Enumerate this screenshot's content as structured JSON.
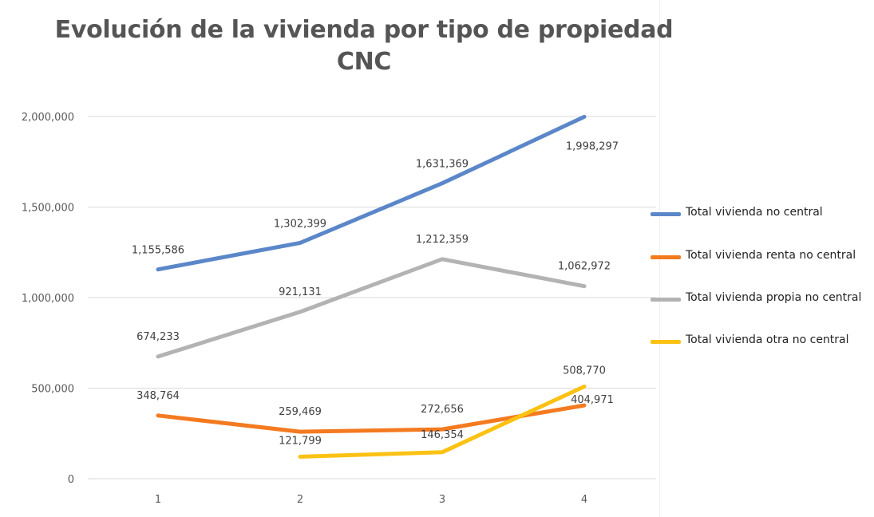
{
  "chart_data": {
    "type": "line",
    "title": [
      "Evolución de la vivienda por tipo de propiedad",
      "CNC"
    ],
    "xlabel": "",
    "ylabel": "",
    "categories": [
      "1",
      "2",
      "3",
      "4"
    ],
    "ylim": [
      0,
      2000000
    ],
    "yticks": [
      0,
      500000,
      1000000,
      1500000,
      2000000
    ],
    "ytick_labels": [
      "0",
      "500,000",
      "1,000,000",
      "1,500,000",
      "2,000,000"
    ],
    "grid": true,
    "legend_position": "right",
    "series": [
      {
        "name": "Total vivienda no central",
        "color": "#5b87c9",
        "values": [
          1155586,
          1302399,
          1631369,
          1998297
        ],
        "labels": [
          "1,155,586",
          "1,302,399",
          "1,631,369",
          "1,998,297"
        ]
      },
      {
        "name": "Total vivienda renta no central",
        "color": "#f47a20",
        "values": [
          348764,
          259469,
          272656,
          404971
        ],
        "labels": [
          "348,764",
          "259,469",
          "272,656",
          "404,971"
        ]
      },
      {
        "name": "Total vivienda propia no central",
        "color": "#b3b3b3",
        "values": [
          674233,
          921131,
          1212359,
          1062972
        ],
        "labels": [
          "674,233",
          "921,131",
          "1,212,359",
          "1,062,972"
        ]
      },
      {
        "name": "Total vivienda otra no central",
        "color": "#fbc214",
        "values": [
          null,
          121799,
          146354,
          508770
        ],
        "labels": [
          null,
          "121,799",
          "146,354",
          "508,770"
        ]
      }
    ]
  }
}
